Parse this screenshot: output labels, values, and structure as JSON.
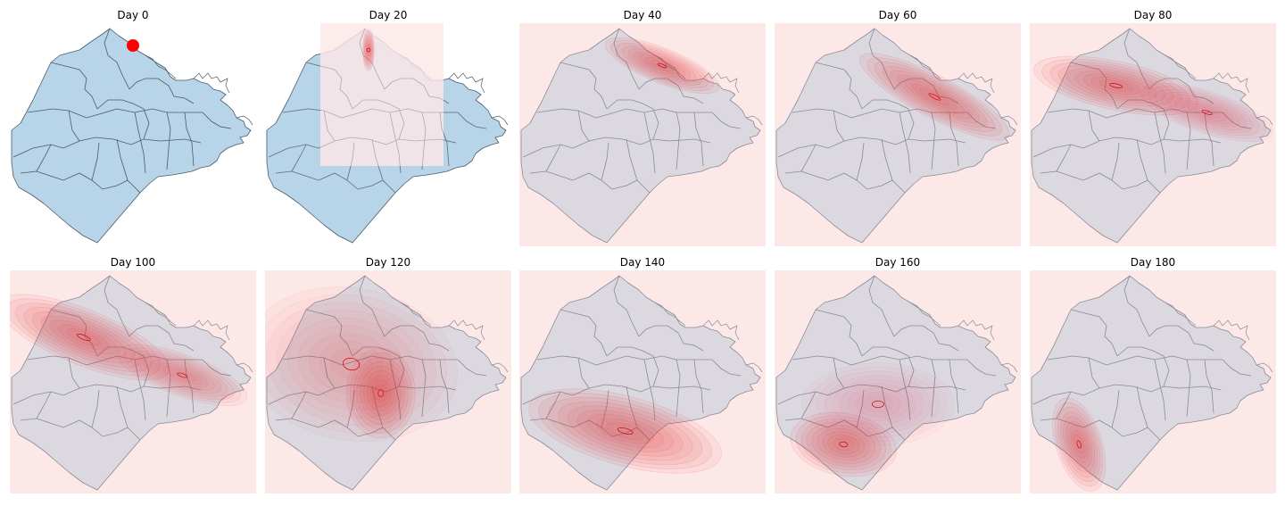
{
  "chart_data": {
    "type": "heatmap",
    "layout_grid": "2x5",
    "colors": {
      "map_fill": "#b7d4e8",
      "map_stroke": "#4a5a6a",
      "heat": "#e8323c",
      "background": "#fde8e8",
      "marker": "#ff0000"
    },
    "panels": [
      {
        "title": "Day 0",
        "kind": "marker",
        "marker": {
          "x": 0.5,
          "y": 0.1
        }
      },
      {
        "title": "Day 20",
        "kind": "partial",
        "clusters": [
          {
            "x": 0.42,
            "y": 0.12,
            "sx": 0.015,
            "sy": 0.06,
            "rot": 0,
            "w": 1.0
          }
        ]
      },
      {
        "title": "Day 40",
        "kind": "full",
        "clusters": [
          {
            "x": 0.58,
            "y": 0.19,
            "sx": 0.16,
            "sy": 0.05,
            "rot": 22,
            "w": 1.0
          }
        ]
      },
      {
        "title": "Day 60",
        "kind": "full",
        "clusters": [
          {
            "x": 0.65,
            "y": 0.33,
            "sx": 0.22,
            "sy": 0.06,
            "rot": 28,
            "w": 1.0
          }
        ]
      },
      {
        "title": "Day 80",
        "kind": "full",
        "clusters": [
          {
            "x": 0.35,
            "y": 0.28,
            "sx": 0.22,
            "sy": 0.07,
            "rot": 12,
            "w": 1.0
          },
          {
            "x": 0.72,
            "y": 0.4,
            "sx": 0.18,
            "sy": 0.06,
            "rot": 18,
            "w": 0.7
          }
        ]
      },
      {
        "title": "Day 100",
        "kind": "full",
        "clusters": [
          {
            "x": 0.3,
            "y": 0.3,
            "sx": 0.24,
            "sy": 0.08,
            "rot": 22,
            "w": 1.0
          },
          {
            "x": 0.7,
            "y": 0.47,
            "sx": 0.18,
            "sy": 0.06,
            "rot": 20,
            "w": 0.8
          }
        ]
      },
      {
        "title": "Day 120",
        "kind": "full",
        "clusters": [
          {
            "x": 0.47,
            "y": 0.55,
            "sx": 0.09,
            "sy": 0.13,
            "rot": 0,
            "w": 1.0
          },
          {
            "x": 0.35,
            "y": 0.42,
            "sx": 0.28,
            "sy": 0.22,
            "rot": 10,
            "w": 0.5
          }
        ]
      },
      {
        "title": "Day 140",
        "kind": "full",
        "clusters": [
          {
            "x": 0.43,
            "y": 0.72,
            "sx": 0.26,
            "sy": 0.1,
            "rot": 15,
            "w": 1.0
          }
        ]
      },
      {
        "title": "Day 160",
        "kind": "full",
        "clusters": [
          {
            "x": 0.28,
            "y": 0.78,
            "sx": 0.14,
            "sy": 0.09,
            "rot": 10,
            "w": 1.0
          },
          {
            "x": 0.42,
            "y": 0.6,
            "sx": 0.2,
            "sy": 0.12,
            "rot": 0,
            "w": 0.4
          }
        ]
      },
      {
        "title": "Day 180",
        "kind": "full",
        "clusters": [
          {
            "x": 0.2,
            "y": 0.78,
            "sx": 0.06,
            "sy": 0.14,
            "rot": -18,
            "w": 1.0
          }
        ]
      }
    ]
  }
}
